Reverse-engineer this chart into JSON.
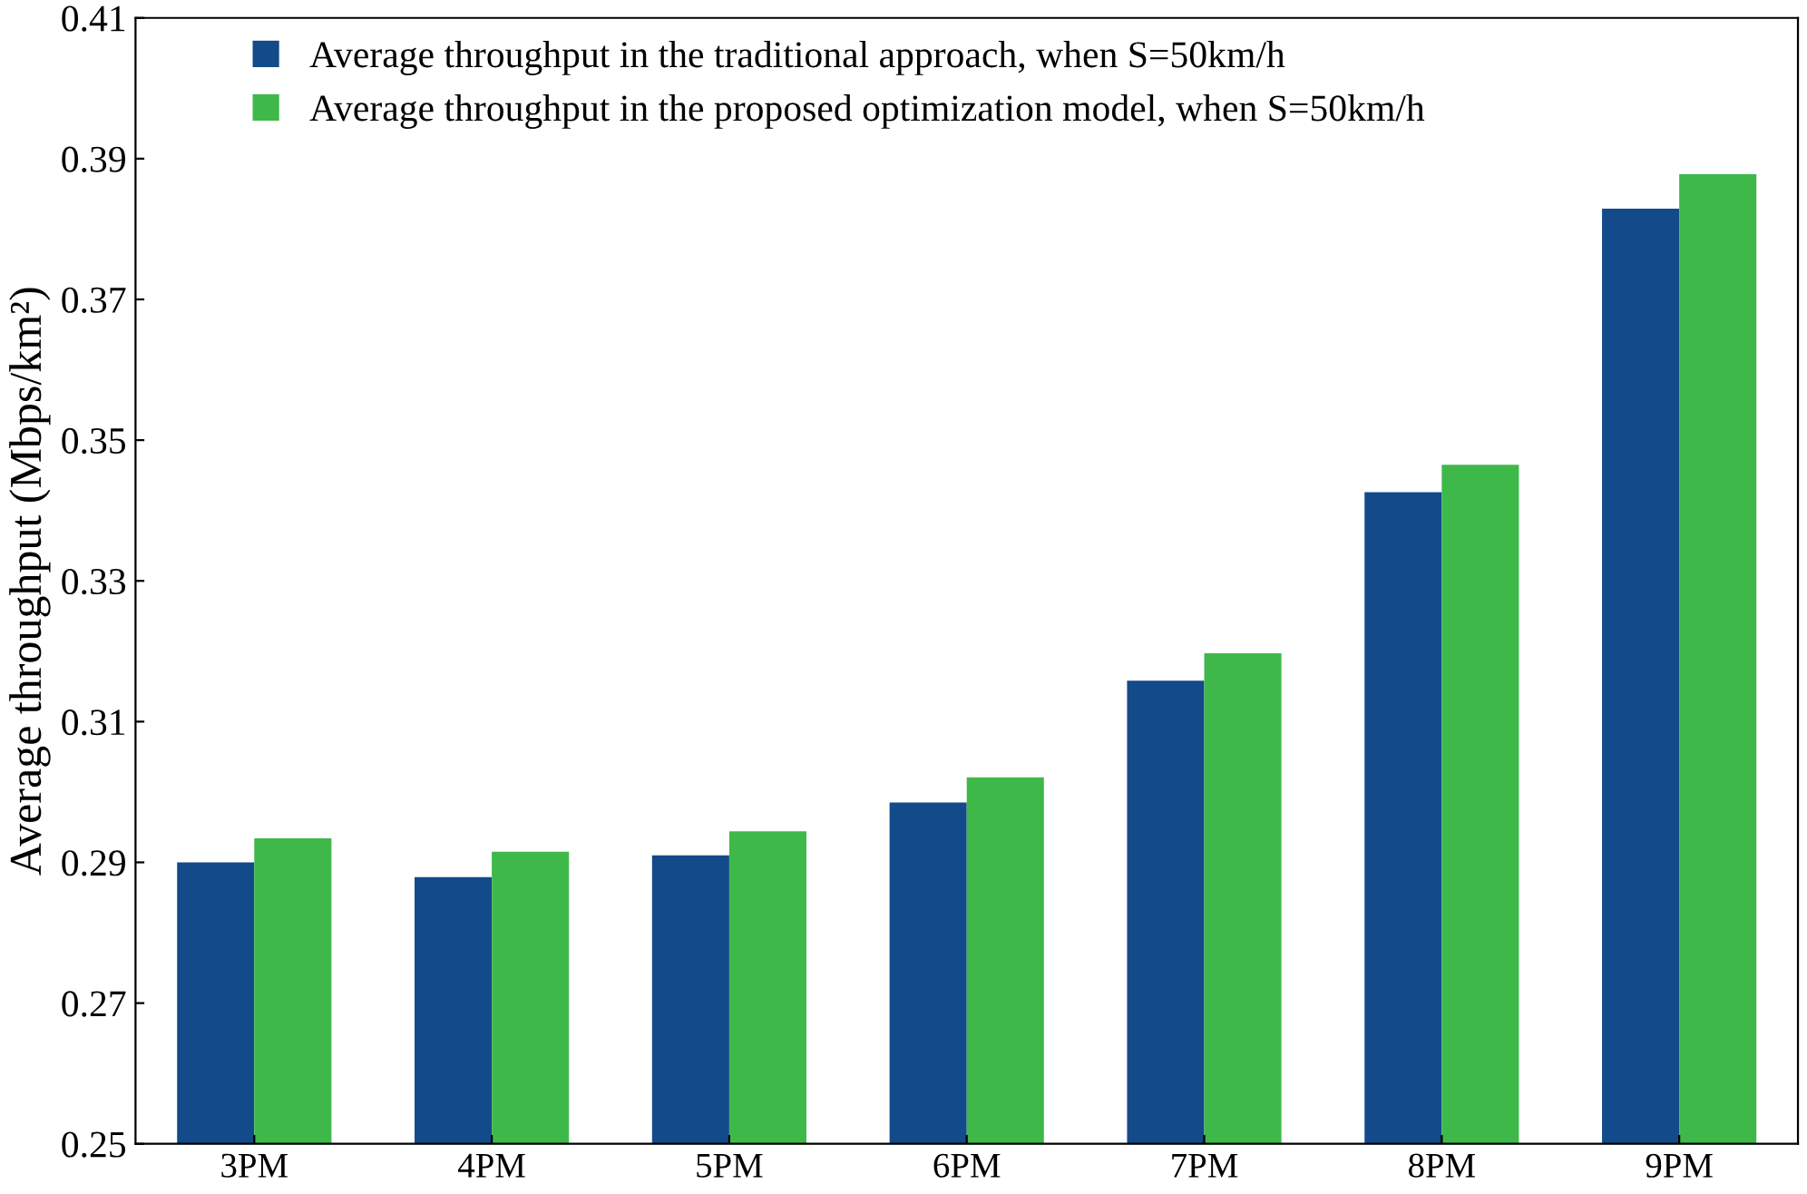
{
  "chart_data": {
    "type": "bar",
    "ylabel": "Average throughput (Mbps/km²)",
    "categories": [
      "3PM",
      "4PM",
      "5PM",
      "6PM",
      "7PM",
      "8PM",
      "9PM"
    ],
    "series": [
      {
        "name": "Average throughput in the traditional approach, when S=50km/h",
        "color": "#124a8a",
        "values": [
          0.29,
          0.2879,
          0.291,
          0.2985,
          0.3158,
          0.3426,
          0.3829
        ]
      },
      {
        "name": "Average throughput in the proposed optimization model, when S=50km/h",
        "color": "#3fb84a",
        "values": [
          0.2934,
          0.2915,
          0.2944,
          0.3021,
          0.3197,
          0.3465,
          0.3878
        ]
      }
    ],
    "ylim": [
      0.25,
      0.41
    ],
    "yticks": [
      0.25,
      0.27,
      0.29,
      0.31,
      0.33,
      0.35,
      0.37,
      0.39,
      0.41
    ],
    "grid": false,
    "legend": "top left"
  }
}
